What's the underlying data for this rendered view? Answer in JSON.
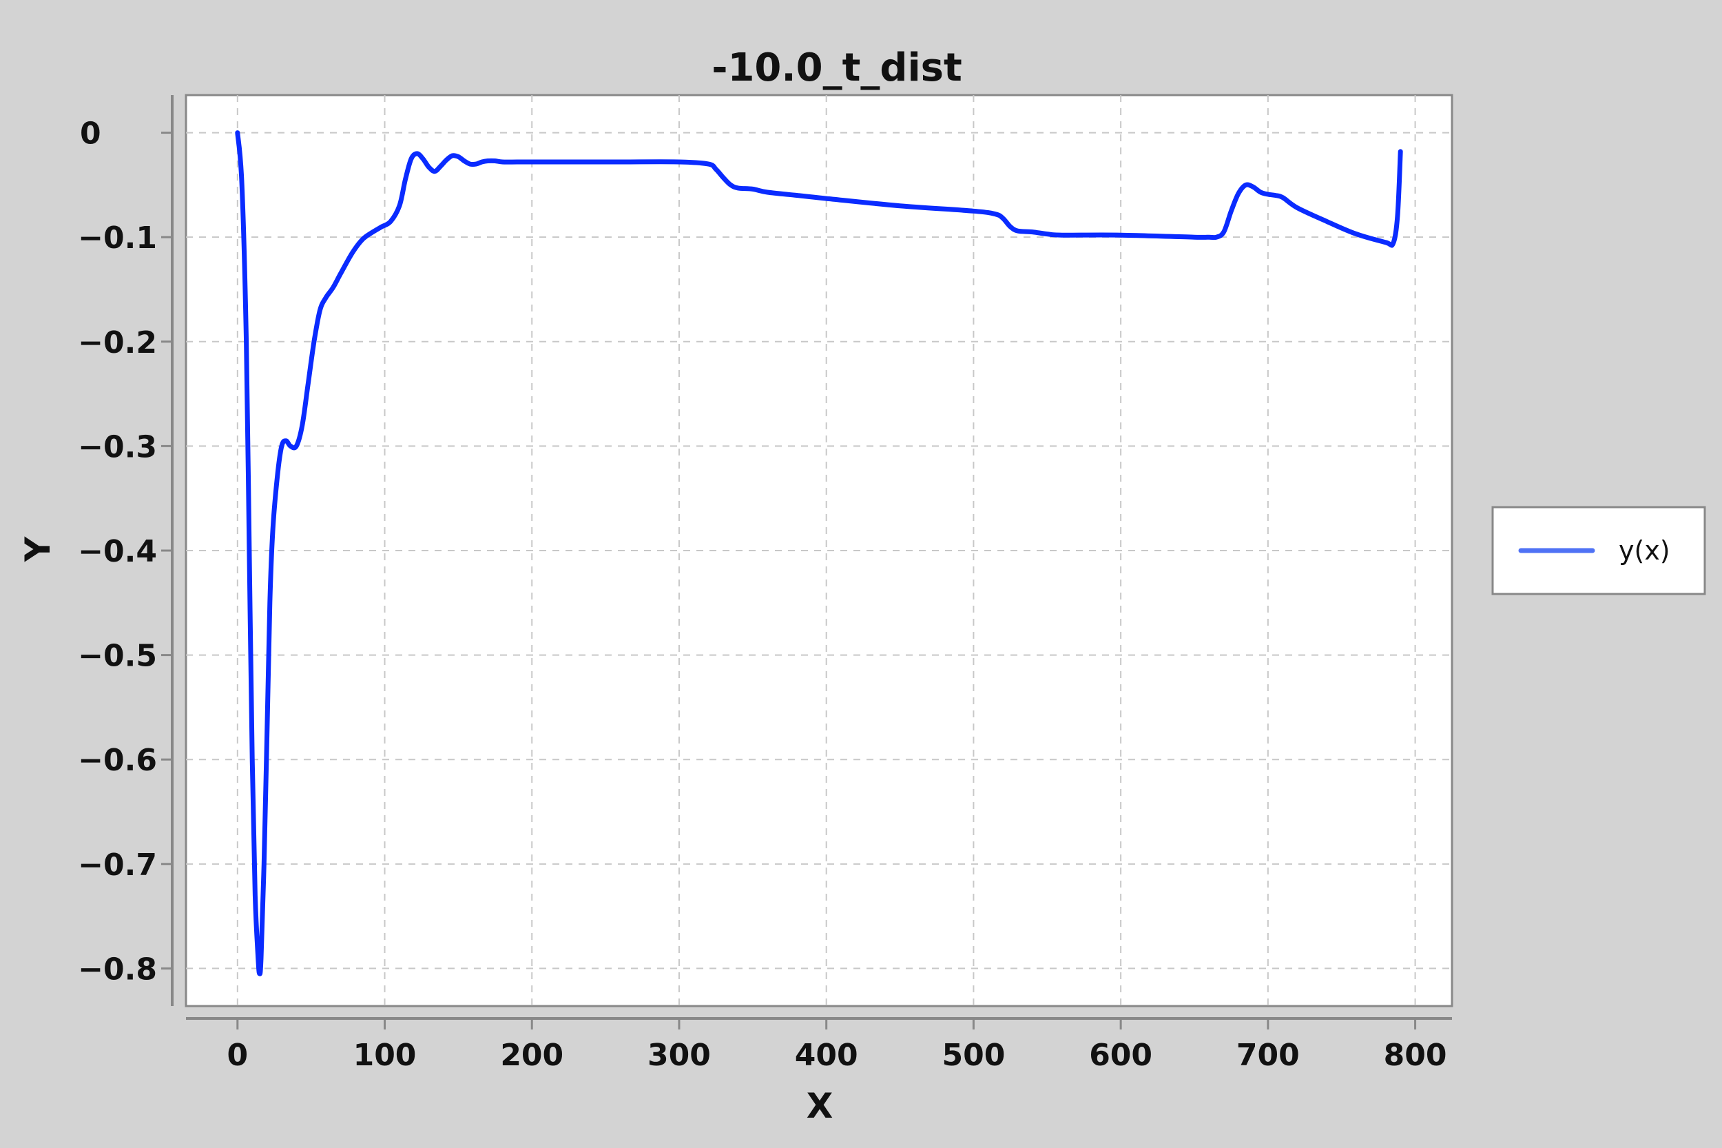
{
  "chart_data": {
    "type": "line",
    "title": "-10.0_t_dist",
    "xlabel": "X",
    "ylabel": "Y",
    "xlim": [
      -35,
      825
    ],
    "ylim": [
      -0.836,
      0.036
    ],
    "x_ticks": [
      0,
      100,
      200,
      300,
      400,
      500,
      600,
      700,
      800
    ],
    "x_tick_labels": [
      "0",
      "100",
      "200",
      "300",
      "400",
      "500",
      "600",
      "700",
      "800"
    ],
    "y_ticks": [
      0,
      -0.1,
      -0.2,
      -0.3,
      -0.4,
      -0.5,
      -0.6,
      -0.7,
      -0.8
    ],
    "y_tick_labels": [
      "0",
      "−0.1",
      "−0.2",
      "−0.3",
      "−0.4",
      "−0.5",
      "−0.6",
      "−0.7",
      "−0.8"
    ],
    "grid": true,
    "legend": {
      "placement": "right",
      "entries": [
        "y(x)"
      ]
    },
    "colors": {
      "series": "#0a2bff",
      "legend_line": "#4f72f5",
      "background": "#d3d3d3",
      "plot_bg": "#ffffff",
      "grid": "#c8c8c8",
      "axis": "#888888"
    },
    "series": [
      {
        "name": "y(x)",
        "x": [
          0,
          3,
          6,
          8,
          10,
          12,
          14,
          15,
          16,
          18,
          20,
          22,
          24,
          27,
          30,
          33,
          36,
          40,
          44,
          48,
          52,
          56,
          60,
          65,
          70,
          78,
          85,
          92,
          98,
          104,
          110,
          114,
          118,
          122,
          126,
          130,
          134,
          138,
          142,
          146,
          150,
          154,
          158,
          162,
          166,
          170,
          175,
          180,
          190,
          200,
          230,
          260,
          300,
          320,
          325,
          330,
          335,
          340,
          350,
          360,
          380,
          400,
          450,
          500,
          515,
          520,
          525,
          530,
          540,
          550,
          560,
          600,
          650,
          660,
          665,
          670,
          675,
          680,
          685,
          690,
          695,
          700,
          705,
          710,
          720,
          740,
          760,
          780,
          785,
          788,
          790
        ],
        "y": [
          0,
          -0.05,
          -0.2,
          -0.4,
          -0.6,
          -0.73,
          -0.79,
          -0.805,
          -0.79,
          -0.7,
          -0.58,
          -0.45,
          -0.38,
          -0.33,
          -0.3,
          -0.295,
          -0.3,
          -0.3,
          -0.28,
          -0.24,
          -0.2,
          -0.17,
          -0.158,
          -0.148,
          -0.135,
          -0.115,
          -0.102,
          -0.095,
          -0.09,
          -0.085,
          -0.07,
          -0.045,
          -0.025,
          -0.02,
          -0.025,
          -0.033,
          -0.037,
          -0.032,
          -0.026,
          -0.022,
          -0.023,
          -0.027,
          -0.03,
          -0.03,
          -0.028,
          -0.027,
          -0.027,
          -0.028,
          -0.028,
          -0.028,
          -0.028,
          -0.028,
          -0.028,
          -0.03,
          -0.035,
          -0.043,
          -0.05,
          -0.053,
          -0.054,
          -0.057,
          -0.06,
          -0.063,
          -0.07,
          -0.075,
          -0.078,
          -0.082,
          -0.09,
          -0.094,
          -0.095,
          -0.097,
          -0.098,
          -0.098,
          -0.1,
          -0.1,
          -0.1,
          -0.095,
          -0.075,
          -0.058,
          -0.05,
          -0.052,
          -0.057,
          -0.059,
          -0.06,
          -0.062,
          -0.072,
          -0.085,
          -0.097,
          -0.105,
          -0.106,
          -0.08,
          -0.018
        ]
      }
    ]
  }
}
